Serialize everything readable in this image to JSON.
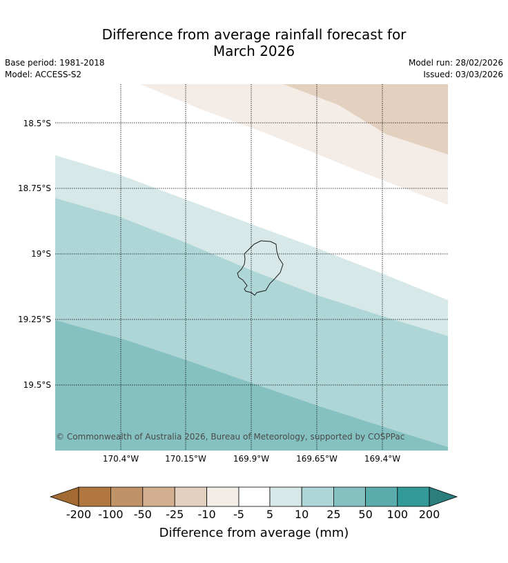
{
  "title": "Difference from average rainfall forecast for March 2026",
  "title_line1": "Difference from average rainfall forecast for",
  "title_line2": "March 2026",
  "base_period": "Base period: 1981-2018",
  "model": "Model: ACCESS-S2",
  "model_run": "Model run: 28/02/2026",
  "issued": "Issued: 03/03/2026",
  "credit": "© Commonwealth of Australia 2026, Bureau of Meteorology, supported by COSPPac",
  "lat_labels": [
    "18.5°S",
    "18.75°S",
    "19°S",
    "19.25°S",
    "19.5°S"
  ],
  "lon_labels": [
    "170.4°W",
    "170.15°W",
    "169.9°W",
    "169.65°W",
    "169.4°W"
  ],
  "legend": {
    "label": "Difference from average (mm)",
    "ticks": [
      "-200",
      "-100",
      "-50",
      "-25",
      "-10",
      "-5",
      "5",
      "10",
      "25",
      "50",
      "100",
      "200"
    ],
    "colors": [
      "#a36b33",
      "#b07840",
      "#c09268",
      "#d4b092",
      "#e3d0bf",
      "#f4ece7",
      "#ffffff",
      "#d6e9e8",
      "#afd6d6",
      "#85c1c0",
      "#5badad",
      "#339a99",
      "#2a7f7e"
    ]
  },
  "map_regions": [
    {
      "category": "-10 to -25",
      "color": "#e3d0bf"
    },
    {
      "category": "-5 to -10",
      "color": "#f4ece7"
    },
    {
      "category": "-5 to 5",
      "color": "#ffffff"
    },
    {
      "category": "5 to 10",
      "color": "#d6e9e8"
    },
    {
      "category": "10 to 25",
      "color": "#afd6d6"
    },
    {
      "category": "25 to 50",
      "color": "#85c1c0"
    }
  ]
}
